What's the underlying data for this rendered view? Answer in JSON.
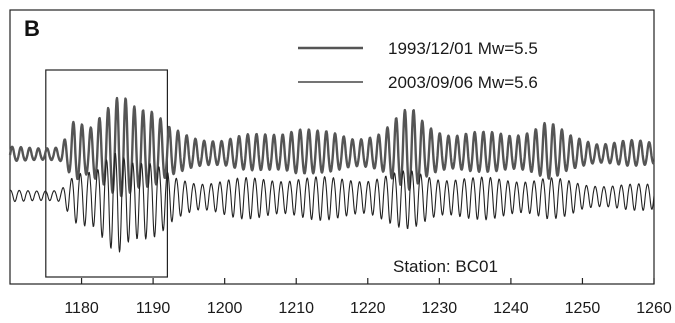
{
  "panel_label": "B",
  "chart_data": {
    "type": "line",
    "xlim": [
      1170,
      1260
    ],
    "x_ticks": [
      1180,
      1190,
      1200,
      1210,
      1220,
      1230,
      1240,
      1250,
      1260
    ],
    "x_tick_labels": [
      "1180",
      "1190",
      "1200",
      "1210",
      "1220",
      "1230",
      "1240",
      "1250",
      "1260"
    ],
    "xlabel": "",
    "ylabel": "",
    "grid": false,
    "legend_position": "top-right",
    "series": [
      {
        "name": "1993/12/01 Mw=5.5",
        "color": "#555555",
        "style": "thick"
      },
      {
        "name": "2003/09/06 Mw=5.6",
        "color": "#222222",
        "style": "thin"
      }
    ],
    "highlight_window": {
      "x_range": [
        1175,
        1192
      ]
    },
    "annotation": "Station: BC01"
  }
}
